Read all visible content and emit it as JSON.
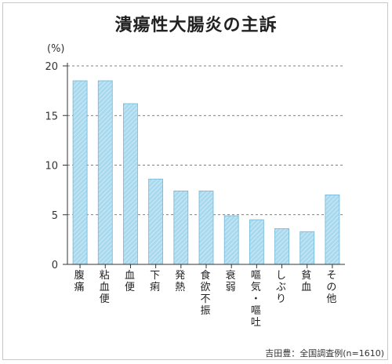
{
  "chart_data": {
    "type": "bar",
    "title": "潰瘍性大腸炎の主訴",
    "ylabel": "(%)",
    "xlabel": "",
    "ylim": [
      0,
      20
    ],
    "yticks": [
      0,
      5,
      10,
      15,
      20
    ],
    "grid": "horizontal-dashed",
    "categories": [
      "腹痛",
      "粘血便",
      "血便",
      "下痢",
      "発熱",
      "食欲不振",
      "衰弱",
      "嘔気・嘔吐",
      "しぶり",
      "貧血",
      "その他"
    ],
    "values": [
      18.5,
      18.5,
      16.2,
      8.6,
      7.4,
      7.4,
      4.9,
      4.5,
      3.6,
      3.3,
      7.0
    ],
    "bar_color": "#9fd3ea",
    "bar_edge_color": "#6fb8d8"
  },
  "source": "吉田豊：全国調査例(n=1610)"
}
